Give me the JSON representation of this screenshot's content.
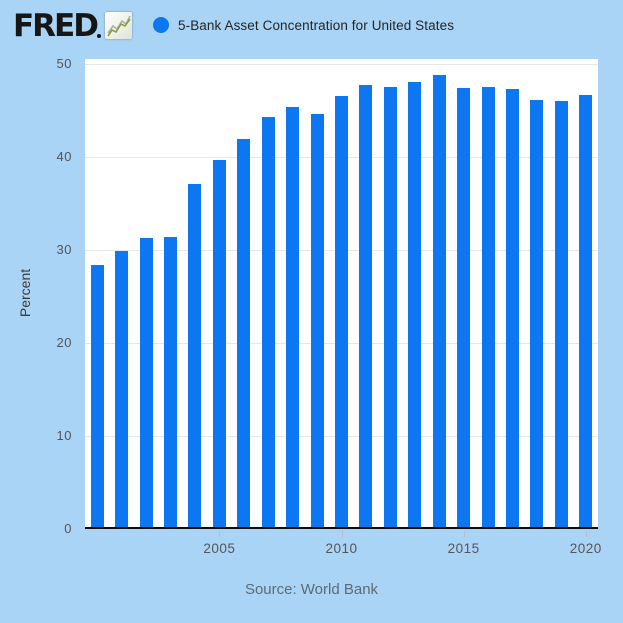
{
  "header": {
    "logo_text": "FRED",
    "series_title": "5-Bank Asset Concentration for United States"
  },
  "footer": {
    "source_label": "Source: World Bank"
  },
  "colors": {
    "background": "#a9d4f6",
    "bar": "#0d76f1",
    "legend_dot": "#0d76f1",
    "plot_background": "#ffffff",
    "gridline": "#e7e7e7",
    "axis_line": "#0d0d0d",
    "tick_label": "#54555a",
    "title_text": "#252525",
    "source_text": "#5d6b75"
  },
  "chart_data": {
    "type": "bar",
    "title": "5-Bank Asset Concentration for United States",
    "xlabel": "",
    "ylabel": "Percent",
    "ylim": [
      0,
      50
    ],
    "y_ticks": [
      0,
      10,
      20,
      30,
      40,
      50
    ],
    "x": [
      2000,
      2001,
      2002,
      2003,
      2004,
      2005,
      2006,
      2007,
      2008,
      2009,
      2010,
      2011,
      2012,
      2013,
      2014,
      2015,
      2016,
      2017,
      2018,
      2019,
      2020
    ],
    "values": [
      28.19,
      29.63,
      31.0,
      31.16,
      36.86,
      39.43,
      41.71,
      44.0,
      45.16,
      44.39,
      46.3,
      47.52,
      47.31,
      47.83,
      48.58,
      47.19,
      47.31,
      47.04,
      45.88,
      45.8,
      46.45
    ],
    "x_tick_labels": [
      "2005",
      "2010",
      "2015",
      "2020"
    ],
    "x_tick_years": [
      2005,
      2010,
      2015,
      2020
    ],
    "grid": "horizontal",
    "legend_position": "top",
    "source": "Source: World Bank"
  }
}
